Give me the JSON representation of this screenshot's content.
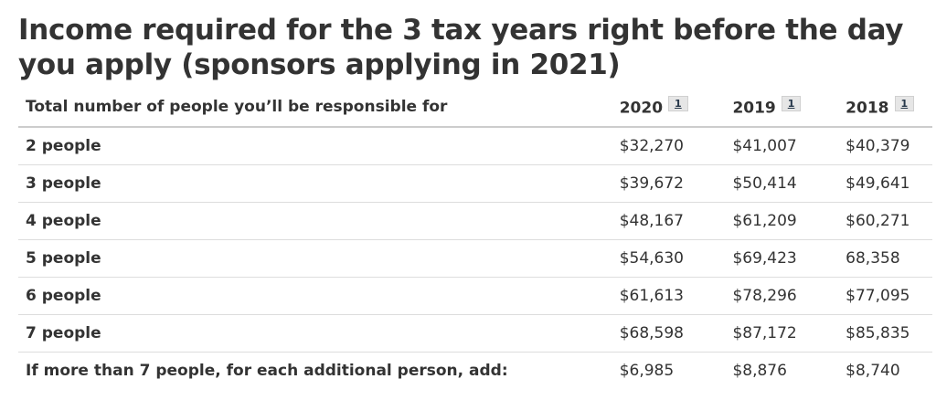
{
  "title": "Income required for the 3 tax years right before the day you apply (sponsors applying in 2021)",
  "table": {
    "header_label": "Total number of people you’ll be responsible for",
    "years": [
      {
        "year": "2020",
        "footnote": "1"
      },
      {
        "year": "2019",
        "footnote": "1"
      },
      {
        "year": "2018",
        "footnote": "1"
      }
    ],
    "rows": [
      {
        "label": "2 people",
        "values": [
          "$32,270",
          "$41,007",
          "$40,379"
        ]
      },
      {
        "label": "3 people",
        "values": [
          "$39,672",
          "$50,414",
          "$49,641"
        ]
      },
      {
        "label": "4 people",
        "values": [
          "$48,167",
          "$61,209",
          "$60,271"
        ]
      },
      {
        "label": "5 people",
        "values": [
          "$54,630",
          "$69,423",
          "68,358"
        ]
      },
      {
        "label": "6 people",
        "values": [
          "$61,613",
          "$78,296",
          "$77,095"
        ]
      },
      {
        "label": "7 people",
        "values": [
          "$68,598",
          "$87,172",
          "$85,835"
        ]
      },
      {
        "label": "If more than 7 people, for each additional person, add:",
        "values": [
          "$6,985",
          "$8,876",
          "$8,740"
        ]
      }
    ]
  },
  "colors": {
    "text": "#333333",
    "footnote_bg": "#e6e6e6",
    "footnote_text": "#26374a",
    "row_border": "#dddddd"
  }
}
